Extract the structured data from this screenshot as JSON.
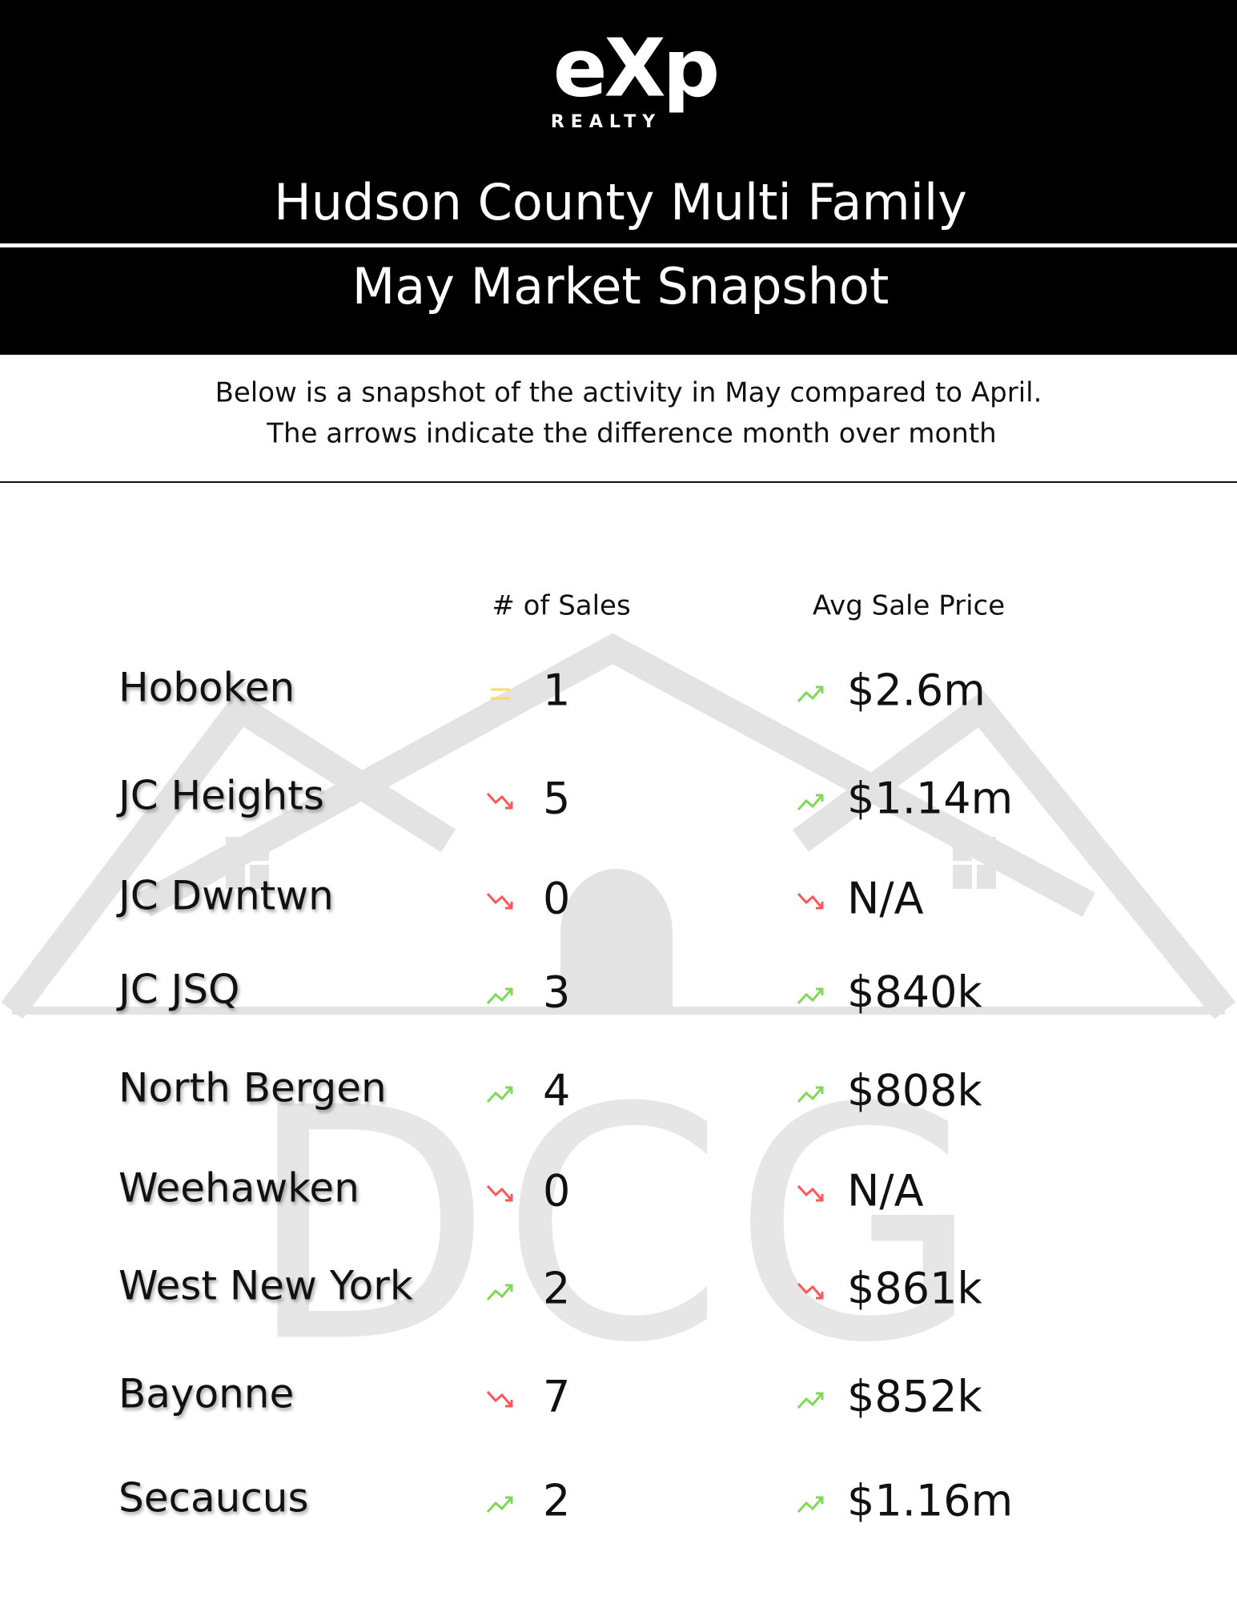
{
  "header": {
    "logo": "eXp",
    "logo_sub": "REALTY",
    "title": "Hudson County Multi Family",
    "subtitle": "May Market Snapshot"
  },
  "intro": [
    "Below is a snapshot of the activity in May compared to April.",
    "The arrows indicate the difference month over month"
  ],
  "watermark": "DCG",
  "table": {
    "columns": [
      "# of Sales",
      "Avg Sale Price"
    ],
    "rows": [
      [
        "Hoboken",
        1,
        "$2.6m"
      ],
      [
        "JC Heights",
        5,
        "$1.14m"
      ],
      [
        "JC Dwntwn",
        0,
        "N/A"
      ],
      [
        "JC JSQ",
        3,
        "$840k"
      ],
      [
        "North Bergen",
        4,
        "$808k"
      ],
      [
        "Weehawken",
        0,
        "N/A"
      ],
      [
        "West New York",
        2,
        "$861k"
      ],
      [
        "Bayonne",
        7,
        "$852k"
      ],
      [
        "Secaucus",
        2,
        "$1.16m"
      ]
    ]
  }
}
